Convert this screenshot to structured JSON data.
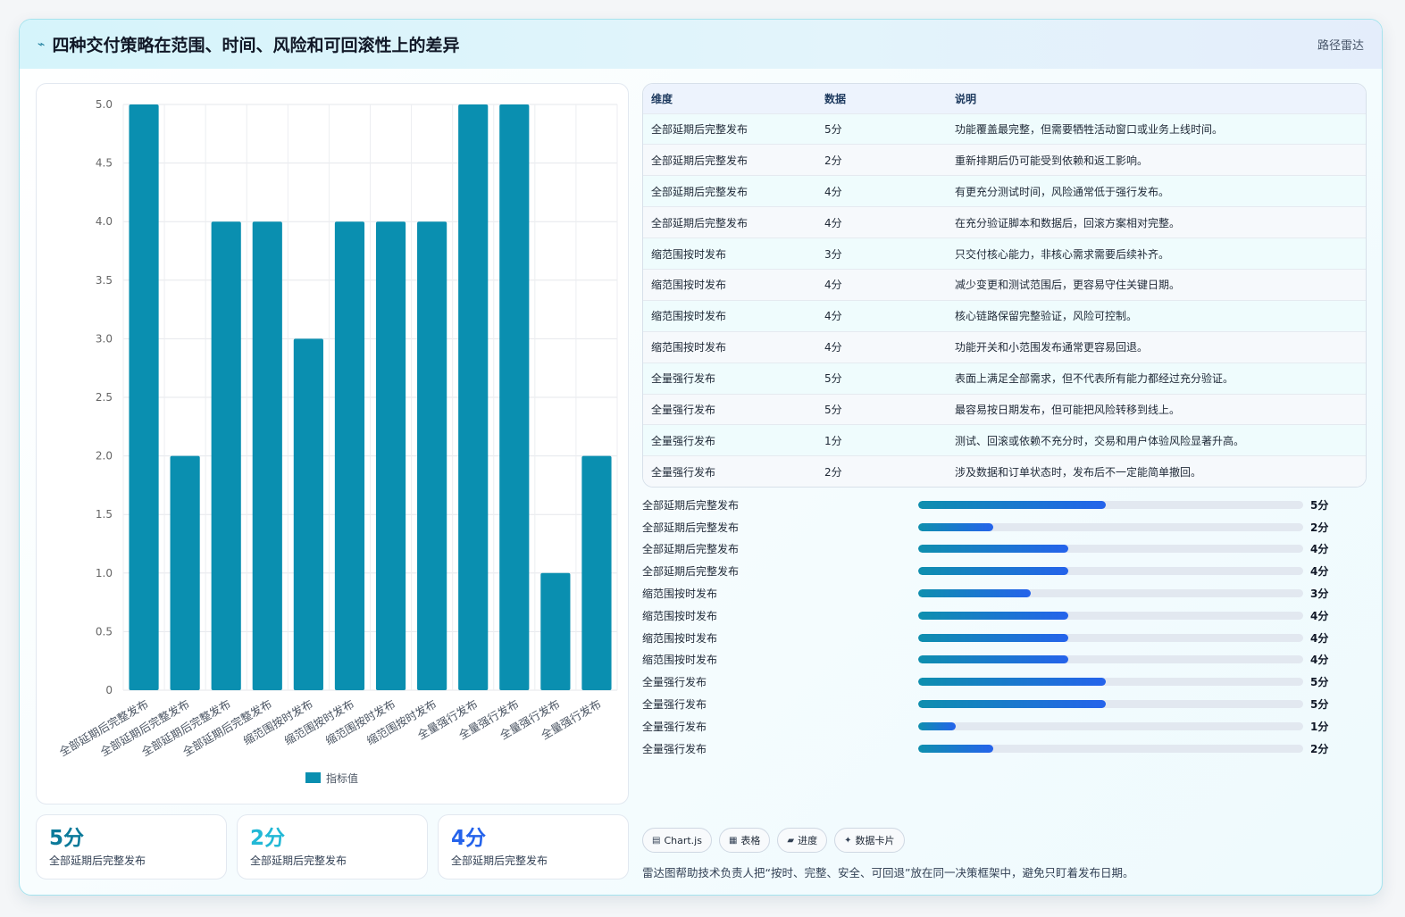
{
  "header": {
    "icon": "pulse-icon",
    "title": "四种交付策略在范围、时间、风险和可回滚性上的差异",
    "tag": "路径雷达"
  },
  "chart_data": {
    "type": "bar",
    "categories": [
      "全部延期后完整发布",
      "全部延期后完整发布",
      "全部延期后完整发布",
      "全部延期后完整发布",
      "缩范围按时发布",
      "缩范围按时发布",
      "缩范围按时发布",
      "缩范围按时发布",
      "全量强行发布",
      "全量强行发布",
      "全量强行发布",
      "全量强行发布"
    ],
    "series": [
      {
        "name": "指标值",
        "values": [
          5,
          2,
          4,
          4,
          3,
          4,
          4,
          4,
          5,
          5,
          1,
          2
        ]
      }
    ],
    "ylim": [
      0,
      5
    ],
    "yticks": [
      "0",
      "0.5",
      "1.0",
      "1.5",
      "2.0",
      "2.5",
      "3.0",
      "3.5",
      "4.0",
      "4.5",
      "5.0"
    ],
    "color": "#0a8fb0",
    "legend": "bottom",
    "grid": true
  },
  "stats": [
    {
      "value": "5分",
      "label": "全部延期后完整发布",
      "color": "#0b7a9a"
    },
    {
      "value": "2分",
      "label": "全部延期后完整发布",
      "color": "#22b8d6"
    },
    {
      "value": "4分",
      "label": "全部延期后完整发布",
      "color": "#2563eb"
    }
  ],
  "table": {
    "headers": [
      "维度",
      "数据",
      "说明"
    ],
    "rows": [
      [
        "全部延期后完整发布",
        "5分",
        "功能覆盖最完整，但需要牺牲活动窗口或业务上线时间。"
      ],
      [
        "全部延期后完整发布",
        "2分",
        "重新排期后仍可能受到依赖和返工影响。"
      ],
      [
        "全部延期后完整发布",
        "4分",
        "有更充分测试时间，风险通常低于强行发布。"
      ],
      [
        "全部延期后完整发布",
        "4分",
        "在充分验证脚本和数据后，回滚方案相对完整。"
      ],
      [
        "缩范围按时发布",
        "3分",
        "只交付核心能力，非核心需求需要后续补齐。"
      ],
      [
        "缩范围按时发布",
        "4分",
        "减少变更和测试范围后，更容易守住关键日期。"
      ],
      [
        "缩范围按时发布",
        "4分",
        "核心链路保留完整验证，风险可控制。"
      ],
      [
        "缩范围按时发布",
        "4分",
        "功能开关和小范围发布通常更容易回退。"
      ],
      [
        "全量强行发布",
        "5分",
        "表面上满足全部需求，但不代表所有能力都经过充分验证。"
      ],
      [
        "全量强行发布",
        "5分",
        "最容易按日期发布，但可能把风险转移到线上。"
      ],
      [
        "全量强行发布",
        "1分",
        "测试、回滚或依赖不充分时，交易和用户体验风险显著升高。"
      ],
      [
        "全量强行发布",
        "2分",
        "涉及数据和订单状态时，发布后不一定能简单撤回。"
      ]
    ]
  },
  "progress": {
    "max": 5,
    "items": [
      {
        "label": "全部延期后完整发布",
        "value": 5,
        "text": "5分"
      },
      {
        "label": "全部延期后完整发布",
        "value": 2,
        "text": "2分"
      },
      {
        "label": "全部延期后完整发布",
        "value": 4,
        "text": "4分"
      },
      {
        "label": "全部延期后完整发布",
        "value": 4,
        "text": "4分"
      },
      {
        "label": "缩范围按时发布",
        "value": 3,
        "text": "3分"
      },
      {
        "label": "缩范围按时发布",
        "value": 4,
        "text": "4分"
      },
      {
        "label": "缩范围按时发布",
        "value": 4,
        "text": "4分"
      },
      {
        "label": "缩范围按时发布",
        "value": 4,
        "text": "4分"
      },
      {
        "label": "全量强行发布",
        "value": 5,
        "text": "5分"
      },
      {
        "label": "全量强行发布",
        "value": 5,
        "text": "5分"
      },
      {
        "label": "全量强行发布",
        "value": 1,
        "text": "1分"
      },
      {
        "label": "全量强行发布",
        "value": 2,
        "text": "2分"
      }
    ]
  },
  "chips": [
    {
      "icon": "chart-icon",
      "glyph": "▤",
      "label": "Chart.js"
    },
    {
      "icon": "table-icon",
      "glyph": "▦",
      "label": "表格"
    },
    {
      "icon": "progress-icon",
      "glyph": "▰",
      "label": "进度"
    },
    {
      "icon": "card-icon",
      "glyph": "✦",
      "label": "数据卡片"
    }
  ],
  "note": "雷达图帮助技术负责人把“按时、完整、安全、可回退”放在同一决策框架中，避免只盯着发布日期。"
}
